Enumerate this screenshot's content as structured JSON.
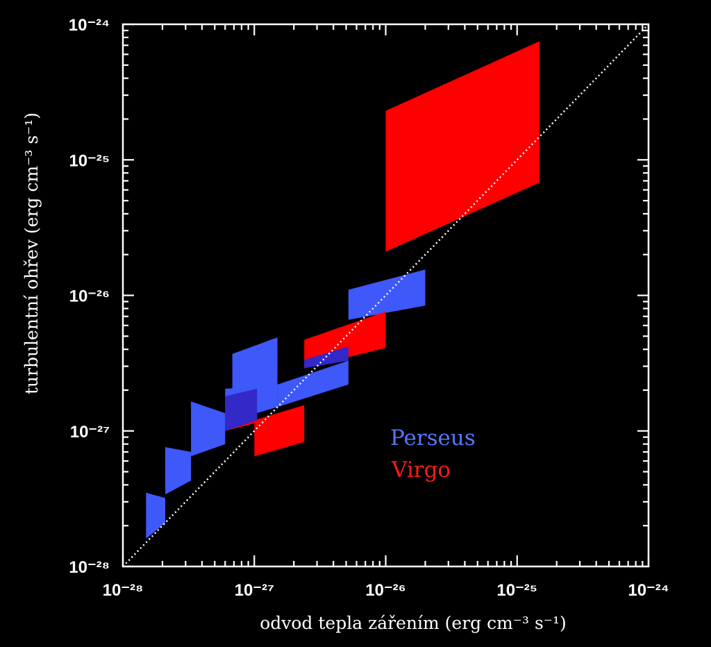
{
  "chart_data": {
    "type": "area",
    "title": "",
    "xlabel": "odvod tepla zářením (erg cm⁻³ s⁻¹)",
    "ylabel": "turbulentní ohřev (erg cm⁻³ s⁻¹)",
    "x_scale": "log",
    "y_scale": "log",
    "xlim": [
      1e-28,
      1e-24
    ],
    "ylim": [
      1e-28,
      1e-24
    ],
    "x_ticks": [
      {
        "value": 1e-28,
        "label": "10⁻²⁸"
      },
      {
        "value": 1e-27,
        "label": "10⁻²⁷"
      },
      {
        "value": 1e-26,
        "label": "10⁻²⁶"
      },
      {
        "value": 1e-25,
        "label": "10⁻²⁵"
      },
      {
        "value": 1e-24,
        "label": "10⁻²⁴"
      }
    ],
    "y_ticks": [
      {
        "value": 1e-28,
        "label": "10⁻²⁸"
      },
      {
        "value": 1e-27,
        "label": "10⁻²⁷"
      },
      {
        "value": 1e-26,
        "label": "10⁻²⁶"
      },
      {
        "value": 1e-25,
        "label": "10⁻²⁵"
      },
      {
        "value": 1e-24,
        "label": "10⁻²⁴"
      }
    ],
    "grid": false,
    "legend_placement": "center-right",
    "reference_line": {
      "style": "dotted",
      "color": "#ffffff",
      "from": [
        1e-28,
        1e-28
      ],
      "to": [
        1e-24,
        1e-24
      ]
    },
    "series": [
      {
        "name": "Perseus",
        "color": "#3f58fa",
        "regions": [
          [
            [
              1.5e-28,
              1.6e-28
            ],
            [
              2.1e-28,
              2.1e-28
            ],
            [
              2.1e-28,
              3.2e-28
            ],
            [
              1.5e-28,
              3.5e-28
            ]
          ],
          [
            [
              2.1e-28,
              3.4e-28
            ],
            [
              3.3e-28,
              4.3e-28
            ],
            [
              3.3e-28,
              7e-28
            ],
            [
              2.1e-28,
              7.6e-28
            ]
          ],
          [
            [
              3.3e-28,
              6.5e-28
            ],
            [
              6e-28,
              8e-28
            ],
            [
              6e-28,
              1.35e-27
            ],
            [
              3.3e-28,
              1.65e-27
            ]
          ],
          [
            [
              6e-28,
              1e-27
            ],
            [
              1.05e-27,
              1.25e-27
            ],
            [
              1.05e-27,
              2.1e-27
            ],
            [
              6e-28,
              2.05e-27
            ]
          ],
          [
            [
              6.8e-28,
              1.2e-27
            ],
            [
              1.5e-27,
              1.5e-27
            ],
            [
              1.5e-27,
              4.9e-27
            ],
            [
              6.8e-28,
              3.7e-27
            ]
          ],
          [
            [
              1.5e-27,
              1.5e-27
            ],
            [
              5.2e-27,
              2.2e-27
            ],
            [
              5.2e-27,
              3.3e-27
            ],
            [
              1.5e-27,
              2.2e-27
            ]
          ],
          [
            [
              5.2e-27,
              6.6e-27
            ],
            [
              2e-26,
              8.4e-27
            ],
            [
              2e-26,
              1.55e-26
            ],
            [
              5.2e-27,
              1.1e-26
            ]
          ],
          [
            [
              2.5e-26,
              4.8e-26
            ],
            [
              5.8e-26,
              6.7e-26
            ],
            [
              5.8e-26,
              2.9e-25
            ],
            [
              2.5e-26,
              1.8e-25
            ]
          ]
        ]
      },
      {
        "name": "Virgo",
        "color": "#fe0000",
        "regions": [
          [
            [
              6e-28,
              1e-27
            ],
            [
              1.05e-27,
              1.15e-27
            ],
            [
              1.05e-27,
              1.25e-27
            ],
            [
              6e-28,
              1.05e-27
            ]
          ],
          [
            [
              1e-27,
              6.5e-28
            ],
            [
              2.4e-27,
              8.3e-28
            ],
            [
              2.4e-27,
              1.55e-27
            ],
            [
              1e-27,
              1.2e-27
            ]
          ],
          [
            [
              2.4e-27,
              2.9e-27
            ],
            [
              1e-26,
              4.1e-27
            ],
            [
              1e-26,
              7.6e-27
            ],
            [
              2.4e-27,
              4.7e-27
            ]
          ],
          [
            [
              1e-26,
              2.1e-26
            ],
            [
              1.48e-25,
              6.8e-26
            ],
            [
              1.48e-25,
              7.5e-25
            ],
            [
              1e-26,
              2.3e-25
            ]
          ]
        ]
      }
    ],
    "overlaps": [
      {
        "color": "#3328c8",
        "polygon": [
          [
            6e-28,
            1e-27
          ],
          [
            1.05e-27,
            1.2e-27
          ],
          [
            1.05e-27,
            2.05e-27
          ],
          [
            6e-28,
            1.8e-27
          ]
        ]
      },
      {
        "color": "#3328c8",
        "polygon": [
          [
            2.4e-27,
            2.9e-27
          ],
          [
            5.2e-27,
            3.3e-27
          ],
          [
            5.2e-27,
            4.2e-27
          ],
          [
            2.4e-27,
            3.35e-27
          ]
        ]
      }
    ]
  }
}
